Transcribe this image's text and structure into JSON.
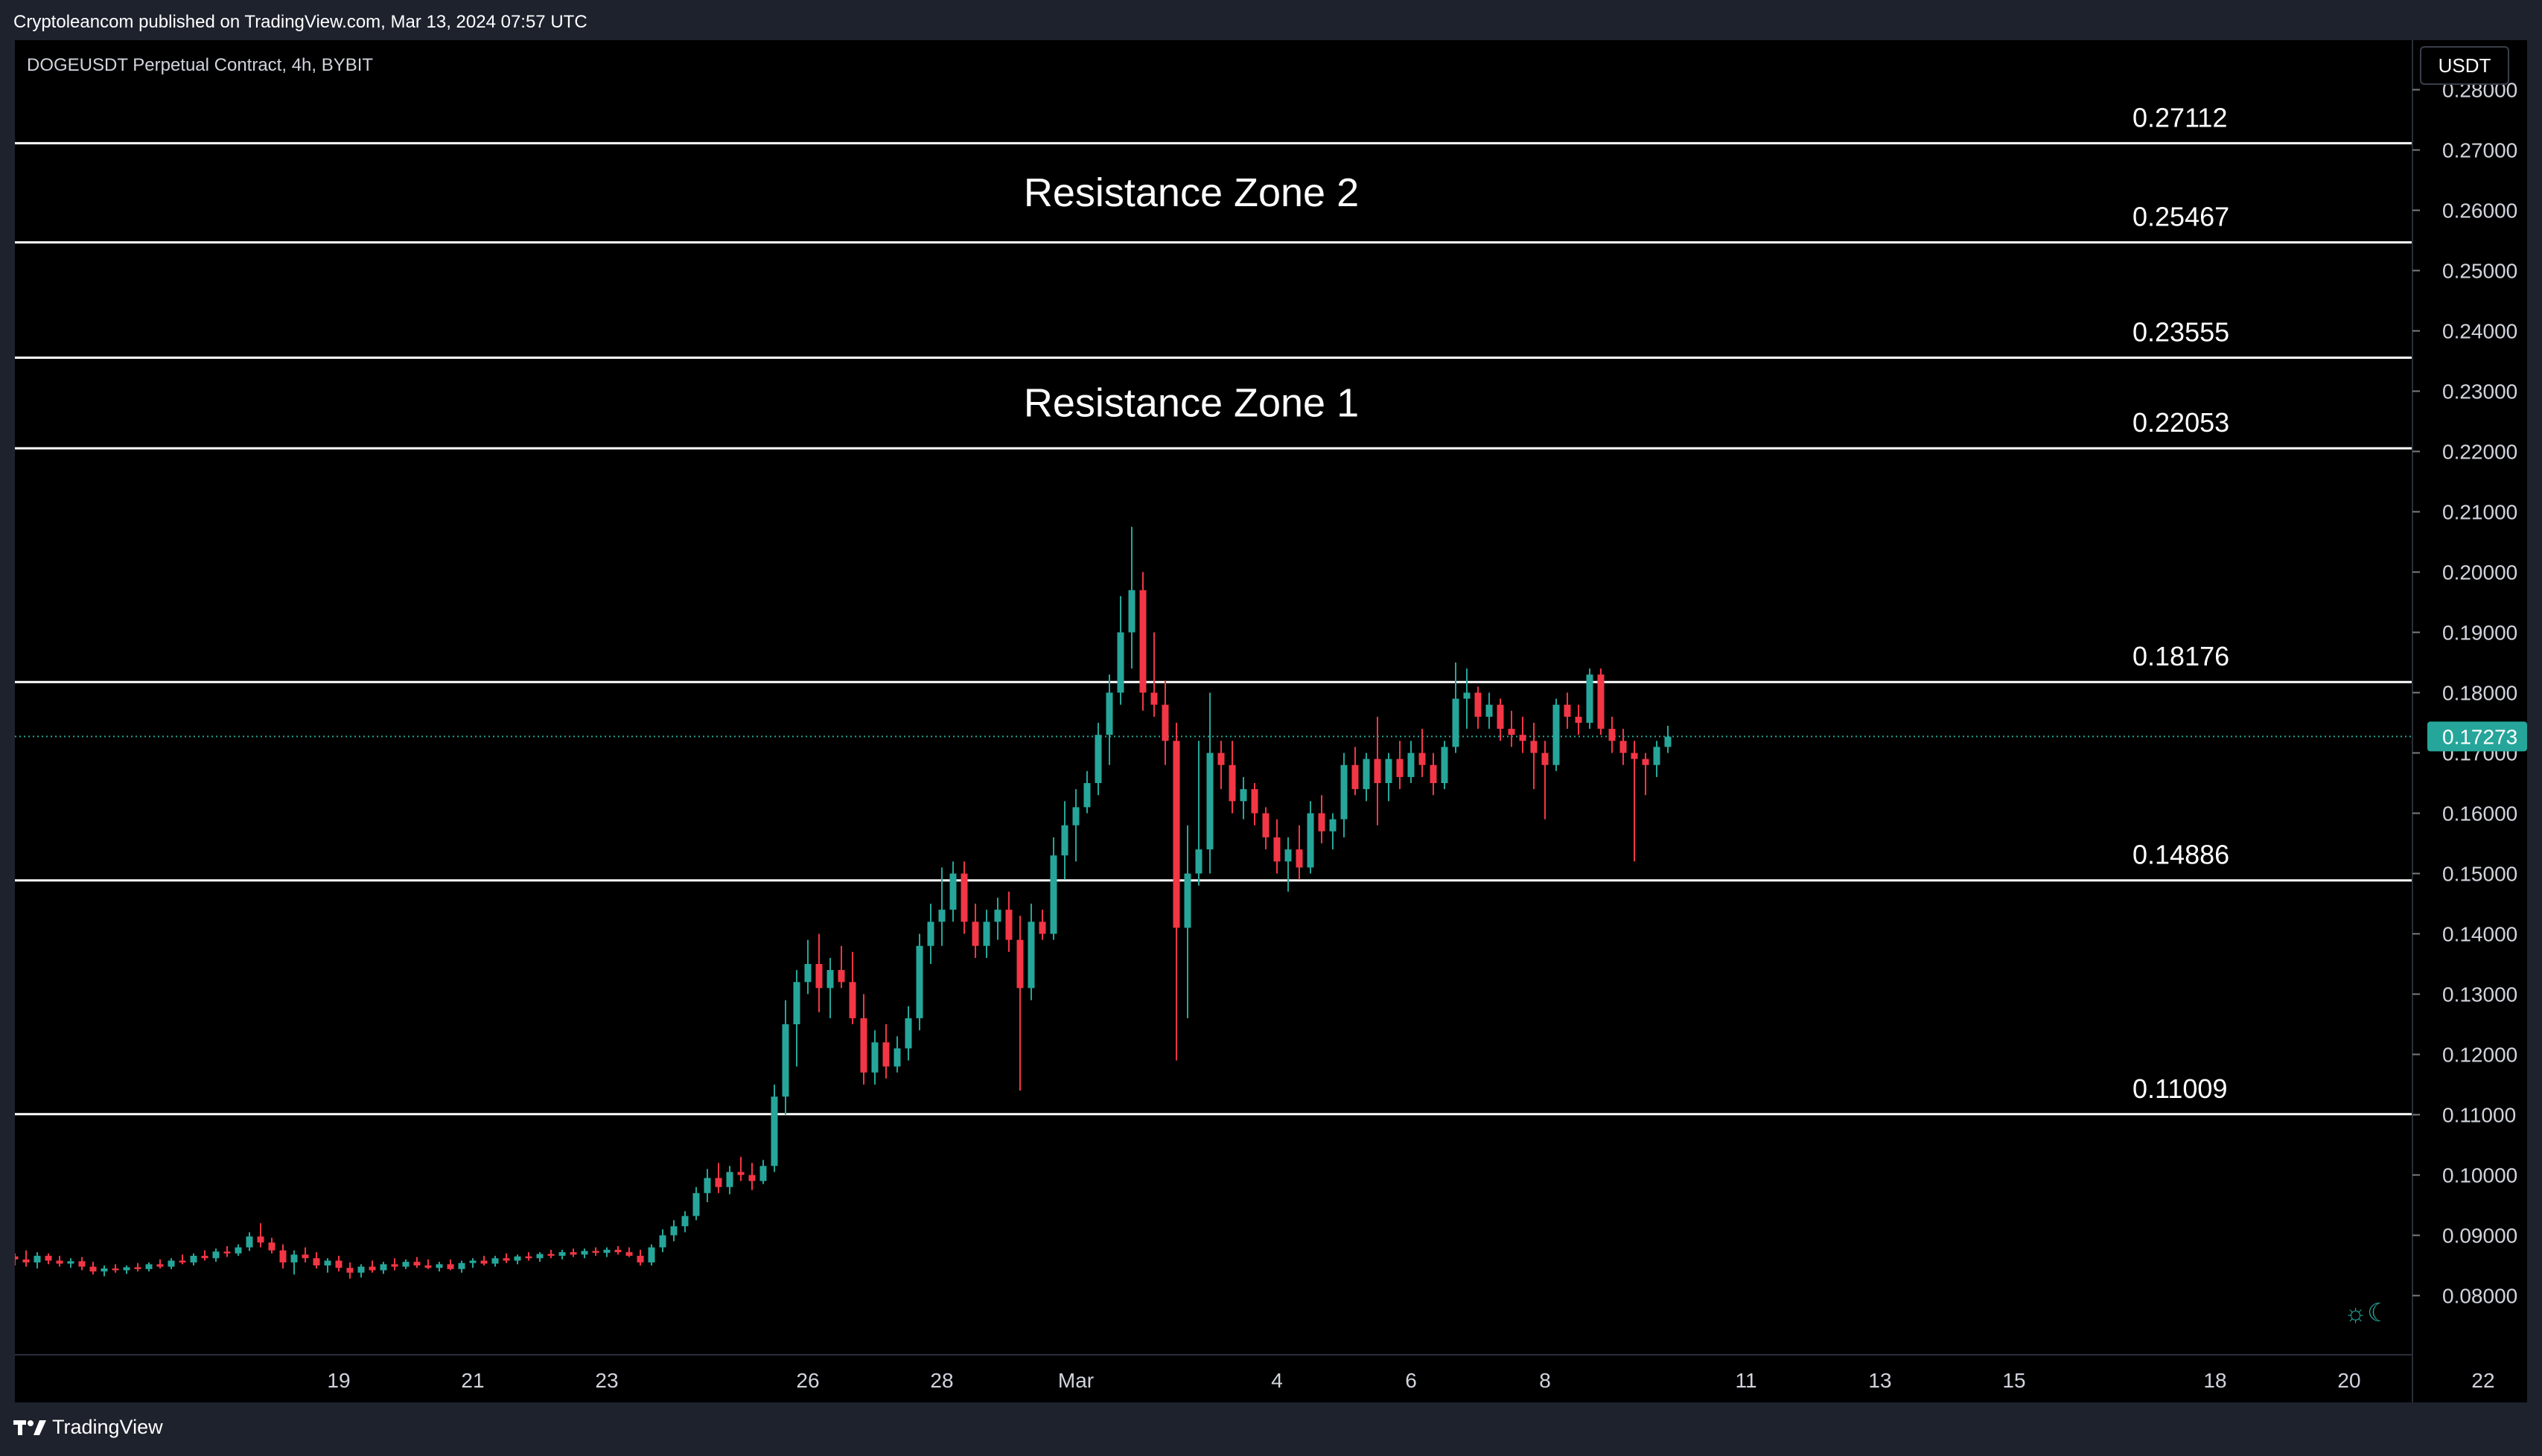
{
  "header": {
    "publisher_line": "Cryptoleancom published on TradingView.com, Mar 13, 2024 07:57 UTC"
  },
  "chart_header": {
    "symbol_info": "DOGEUSDT Perpetual Contract, 4h, BYBIT",
    "currency_label": "USDT"
  },
  "footer": {
    "brand_label": "TradingView"
  },
  "icons": {
    "logo": "tradingview-logo-icon",
    "theme": "sun-moon-icon"
  },
  "colors": {
    "up": "#26a69a",
    "down": "#f23645",
    "level_line": "#ffffff",
    "price_badge": "#26a69a"
  },
  "chart_data": {
    "type": "candlestick",
    "y_axis": {
      "range": [
        0.075,
        0.28
      ],
      "ticks": [
        "0.28000",
        "0.27000",
        "0.26000",
        "0.25000",
        "0.24000",
        "0.23000",
        "0.22000",
        "0.21000",
        "0.20000",
        "0.19000",
        "0.18000",
        "0.17000",
        "0.16000",
        "0.15000",
        "0.14000",
        "0.13000",
        "0.12000",
        "0.11000",
        "0.10000",
        "0.09000",
        "0.08000"
      ]
    },
    "x_axis": {
      "ticks": [
        {
          "label": "19",
          "bar": 29
        },
        {
          "label": "21",
          "bar": 41
        },
        {
          "label": "23",
          "bar": 53
        },
        {
          "label": "26",
          "bar": 71
        },
        {
          "label": "28",
          "bar": 83
        },
        {
          "label": "Mar",
          "bar": 95
        },
        {
          "label": "4",
          "bar": 113
        },
        {
          "label": "6",
          "bar": 125
        },
        {
          "label": "8",
          "bar": 137
        },
        {
          "label": "11",
          "bar": 155
        },
        {
          "label": "13",
          "bar": 167
        },
        {
          "label": "15",
          "bar": 179
        },
        {
          "label": "18",
          "bar": 197
        },
        {
          "label": "20",
          "bar": 209
        },
        {
          "label": "22",
          "bar": 221
        }
      ]
    },
    "last_price": 0.17273,
    "last_price_label": "0.17273",
    "levels": [
      0.27112,
      0.25467,
      0.23555,
      0.22053,
      0.18176,
      0.14886,
      0.11009
    ],
    "level_labels": [
      "0.27112",
      "0.25467",
      "0.23555",
      "0.22053",
      "0.18176",
      "0.14886",
      "0.11009"
    ],
    "zone_labels": [
      {
        "text": "Resistance Zone 2",
        "price": 0.2629
      },
      {
        "text": "Resistance Zone 1",
        "price": 0.228
      }
    ],
    "candles": [
      [
        0.0865,
        0.087,
        0.085,
        0.086
      ],
      [
        0.086,
        0.0875,
        0.0848,
        0.0855
      ],
      [
        0.0855,
        0.0872,
        0.0845,
        0.0866
      ],
      [
        0.0866,
        0.087,
        0.0852,
        0.0858
      ],
      [
        0.0858,
        0.0866,
        0.0848,
        0.0853
      ],
      [
        0.0853,
        0.0862,
        0.0846,
        0.0857
      ],
      [
        0.0857,
        0.0864,
        0.0842,
        0.0848
      ],
      [
        0.0848,
        0.0856,
        0.0835,
        0.084
      ],
      [
        0.084,
        0.085,
        0.0832,
        0.0845
      ],
      [
        0.0845,
        0.0852,
        0.0838,
        0.0842
      ],
      [
        0.0842,
        0.085,
        0.0836,
        0.0847
      ],
      [
        0.0847,
        0.0854,
        0.084,
        0.0844
      ],
      [
        0.0844,
        0.0855,
        0.084,
        0.0852
      ],
      [
        0.0852,
        0.086,
        0.0845,
        0.0848
      ],
      [
        0.0848,
        0.0862,
        0.0844,
        0.0858
      ],
      [
        0.0858,
        0.0868,
        0.0852,
        0.0855
      ],
      [
        0.0855,
        0.087,
        0.085,
        0.0866
      ],
      [
        0.0866,
        0.0875,
        0.0858,
        0.0862
      ],
      [
        0.0862,
        0.0878,
        0.0856,
        0.0873
      ],
      [
        0.0873,
        0.0882,
        0.0864,
        0.087
      ],
      [
        0.087,
        0.0885,
        0.0866,
        0.088
      ],
      [
        0.088,
        0.0905,
        0.0874,
        0.0898
      ],
      [
        0.0898,
        0.092,
        0.088,
        0.0888
      ],
      [
        0.0888,
        0.0896,
        0.087,
        0.0875
      ],
      [
        0.0875,
        0.0885,
        0.0845,
        0.0855
      ],
      [
        0.0855,
        0.0875,
        0.0835,
        0.0868
      ],
      [
        0.0868,
        0.088,
        0.0855,
        0.0862
      ],
      [
        0.0862,
        0.0872,
        0.0845,
        0.085
      ],
      [
        0.085,
        0.0862,
        0.0838,
        0.0858
      ],
      [
        0.0858,
        0.0866,
        0.084,
        0.0846
      ],
      [
        0.0846,
        0.0855,
        0.0828,
        0.0838
      ],
      [
        0.0838,
        0.0852,
        0.083,
        0.0848
      ],
      [
        0.0848,
        0.0858,
        0.0838,
        0.0842
      ],
      [
        0.0842,
        0.0856,
        0.0836,
        0.0852
      ],
      [
        0.0852,
        0.0862,
        0.0842,
        0.0848
      ],
      [
        0.0848,
        0.086,
        0.0844,
        0.0856
      ],
      [
        0.0856,
        0.0864,
        0.0846,
        0.085
      ],
      [
        0.085,
        0.086,
        0.0844,
        0.0846
      ],
      [
        0.0846,
        0.0856,
        0.084,
        0.0852
      ],
      [
        0.0852,
        0.086,
        0.0842,
        0.0844
      ],
      [
        0.0844,
        0.0858,
        0.0838,
        0.0854
      ],
      [
        0.0854,
        0.0862,
        0.0846,
        0.0858
      ],
      [
        0.0858,
        0.0866,
        0.085,
        0.0853
      ],
      [
        0.0853,
        0.0866,
        0.0848,
        0.0862
      ],
      [
        0.0862,
        0.087,
        0.0854,
        0.0858
      ],
      [
        0.0858,
        0.0868,
        0.0852,
        0.0865
      ],
      [
        0.0865,
        0.0872,
        0.0858,
        0.0862
      ],
      [
        0.0862,
        0.0872,
        0.0856,
        0.0869
      ],
      [
        0.0869,
        0.0876,
        0.0862,
        0.0866
      ],
      [
        0.0866,
        0.0876,
        0.086,
        0.0872
      ],
      [
        0.0872,
        0.0878,
        0.0864,
        0.0868
      ],
      [
        0.0868,
        0.0878,
        0.0862,
        0.0874
      ],
      [
        0.0874,
        0.088,
        0.0866,
        0.0871
      ],
      [
        0.0871,
        0.088,
        0.0864,
        0.0876
      ],
      [
        0.0876,
        0.0882,
        0.0868,
        0.0872
      ],
      [
        0.0872,
        0.088,
        0.0864,
        0.0866
      ],
      [
        0.0866,
        0.0876,
        0.085,
        0.0855
      ],
      [
        0.0855,
        0.0885,
        0.085,
        0.088
      ],
      [
        0.088,
        0.091,
        0.0872,
        0.09
      ],
      [
        0.09,
        0.0925,
        0.089,
        0.0915
      ],
      [
        0.0915,
        0.094,
        0.0905,
        0.0932
      ],
      [
        0.0932,
        0.098,
        0.0925,
        0.097
      ],
      [
        0.097,
        0.101,
        0.0955,
        0.0995
      ],
      [
        0.0995,
        0.102,
        0.097,
        0.098
      ],
      [
        0.098,
        0.1015,
        0.0968,
        0.1005
      ],
      [
        0.1005,
        0.103,
        0.099,
        0.1
      ],
      [
        0.1,
        0.102,
        0.0975,
        0.099
      ],
      [
        0.099,
        0.1025,
        0.0985,
        0.1015
      ],
      [
        0.1015,
        0.115,
        0.1005,
        0.113
      ],
      [
        0.113,
        0.129,
        0.11,
        0.125
      ],
      [
        0.125,
        0.134,
        0.118,
        0.132
      ],
      [
        0.132,
        0.139,
        0.13,
        0.135
      ],
      [
        0.135,
        0.14,
        0.127,
        0.131
      ],
      [
        0.131,
        0.136,
        0.126,
        0.134
      ],
      [
        0.134,
        0.138,
        0.131,
        0.132
      ],
      [
        0.132,
        0.137,
        0.125,
        0.126
      ],
      [
        0.126,
        0.13,
        0.115,
        0.117
      ],
      [
        0.117,
        0.124,
        0.115,
        0.122
      ],
      [
        0.122,
        0.125,
        0.116,
        0.118
      ],
      [
        0.118,
        0.123,
        0.117,
        0.121
      ],
      [
        0.121,
        0.128,
        0.119,
        0.126
      ],
      [
        0.126,
        0.14,
        0.124,
        0.138
      ],
      [
        0.138,
        0.145,
        0.135,
        0.142
      ],
      [
        0.142,
        0.151,
        0.138,
        0.144
      ],
      [
        0.144,
        0.152,
        0.142,
        0.15
      ],
      [
        0.15,
        0.152,
        0.14,
        0.142
      ],
      [
        0.142,
        0.145,
        0.136,
        0.138
      ],
      [
        0.138,
        0.144,
        0.136,
        0.142
      ],
      [
        0.142,
        0.146,
        0.139,
        0.144
      ],
      [
        0.144,
        0.147,
        0.137,
        0.139
      ],
      [
        0.139,
        0.143,
        0.114,
        0.131
      ],
      [
        0.131,
        0.145,
        0.129,
        0.142
      ],
      [
        0.142,
        0.144,
        0.139,
        0.14
      ],
      [
        0.14,
        0.156,
        0.139,
        0.153
      ],
      [
        0.153,
        0.162,
        0.149,
        0.158
      ],
      [
        0.158,
        0.164,
        0.152,
        0.161
      ],
      [
        0.161,
        0.167,
        0.16,
        0.165
      ],
      [
        0.165,
        0.175,
        0.163,
        0.173
      ],
      [
        0.173,
        0.183,
        0.168,
        0.18
      ],
      [
        0.18,
        0.196,
        0.178,
        0.19
      ],
      [
        0.19,
        0.2075,
        0.184,
        0.197
      ],
      [
        0.197,
        0.2,
        0.177,
        0.18
      ],
      [
        0.18,
        0.19,
        0.176,
        0.178
      ],
      [
        0.178,
        0.182,
        0.168,
        0.172
      ],
      [
        0.172,
        0.175,
        0.119,
        0.141
      ],
      [
        0.141,
        0.158,
        0.126,
        0.15
      ],
      [
        0.15,
        0.172,
        0.148,
        0.154
      ],
      [
        0.154,
        0.18,
        0.15,
        0.17
      ],
      [
        0.17,
        0.172,
        0.164,
        0.168
      ],
      [
        0.168,
        0.172,
        0.16,
        0.162
      ],
      [
        0.162,
        0.166,
        0.159,
        0.164
      ],
      [
        0.164,
        0.165,
        0.158,
        0.16
      ],
      [
        0.16,
        0.161,
        0.154,
        0.156
      ],
      [
        0.156,
        0.159,
        0.15,
        0.152
      ],
      [
        0.152,
        0.156,
        0.147,
        0.154
      ],
      [
        0.154,
        0.158,
        0.149,
        0.151
      ],
      [
        0.151,
        0.162,
        0.15,
        0.16
      ],
      [
        0.16,
        0.163,
        0.155,
        0.157
      ],
      [
        0.157,
        0.16,
        0.154,
        0.159
      ],
      [
        0.159,
        0.17,
        0.156,
        0.168
      ],
      [
        0.168,
        0.171,
        0.163,
        0.164
      ],
      [
        0.164,
        0.17,
        0.162,
        0.169
      ],
      [
        0.169,
        0.176,
        0.158,
        0.165
      ],
      [
        0.165,
        0.17,
        0.162,
        0.169
      ],
      [
        0.169,
        0.172,
        0.164,
        0.166
      ],
      [
        0.166,
        0.172,
        0.165,
        0.17
      ],
      [
        0.17,
        0.174,
        0.166,
        0.168
      ],
      [
        0.168,
        0.17,
        0.163,
        0.165
      ],
      [
        0.165,
        0.172,
        0.164,
        0.171
      ],
      [
        0.171,
        0.185,
        0.17,
        0.179
      ],
      [
        0.179,
        0.184,
        0.174,
        0.18
      ],
      [
        0.18,
        0.181,
        0.174,
        0.176
      ],
      [
        0.176,
        0.18,
        0.174,
        0.178
      ],
      [
        0.178,
        0.179,
        0.172,
        0.174
      ],
      [
        0.174,
        0.177,
        0.171,
        0.173
      ],
      [
        0.173,
        0.176,
        0.17,
        0.172
      ],
      [
        0.172,
        0.175,
        0.164,
        0.17
      ],
      [
        0.17,
        0.172,
        0.159,
        0.168
      ],
      [
        0.168,
        0.179,
        0.167,
        0.178
      ],
      [
        0.178,
        0.18,
        0.174,
        0.176
      ],
      [
        0.176,
        0.178,
        0.173,
        0.175
      ],
      [
        0.175,
        0.184,
        0.174,
        0.183
      ],
      [
        0.183,
        0.184,
        0.173,
        0.174
      ],
      [
        0.174,
        0.176,
        0.17,
        0.172
      ],
      [
        0.172,
        0.174,
        0.168,
        0.17
      ],
      [
        0.17,
        0.172,
        0.152,
        0.169
      ],
      [
        0.169,
        0.17,
        0.163,
        0.168
      ],
      [
        0.168,
        0.172,
        0.166,
        0.171
      ],
      [
        0.171,
        0.1745,
        0.17,
        0.1727
      ]
    ]
  }
}
